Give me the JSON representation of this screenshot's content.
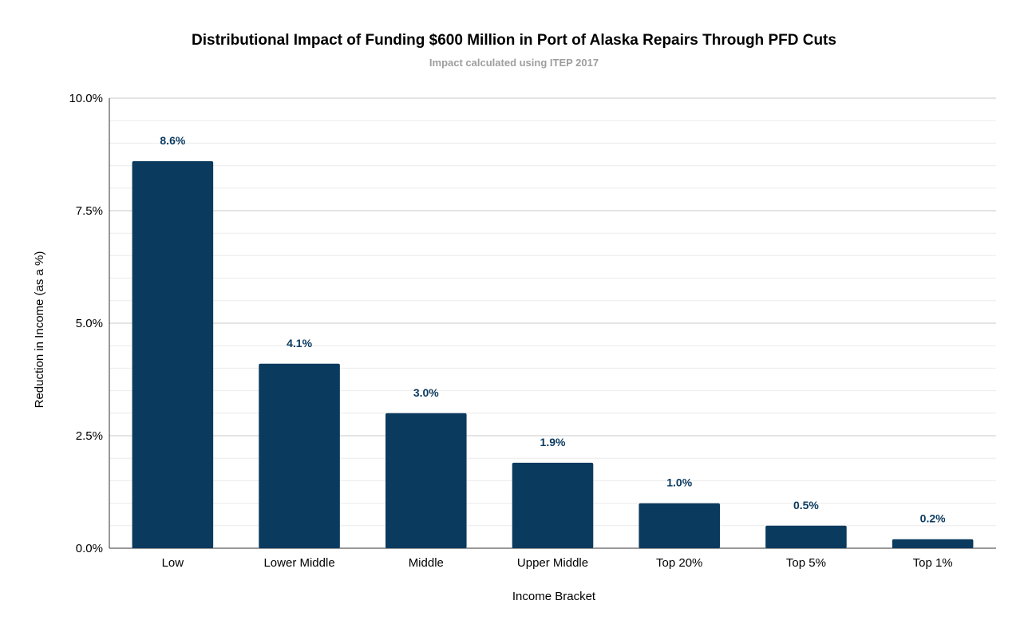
{
  "chart_data": {
    "type": "bar",
    "title": "Distributional Impact of Funding $600 Million in Port of Alaska Repairs Through PFD Cuts",
    "subtitle": "Impact calculated using ITEP 2017",
    "xlabel": "Income Bracket",
    "ylabel": "Reduction in Income (as a %)",
    "categories": [
      "Low",
      "Lower Middle",
      "Middle",
      "Upper Middle",
      "Top 20%",
      "Top 5%",
      "Top 1%"
    ],
    "values": [
      8.6,
      4.1,
      3.0,
      1.9,
      1.0,
      0.5,
      0.2
    ],
    "data_labels": [
      "8.6%",
      "4.1%",
      "3.0%",
      "1.9%",
      "1.0%",
      "0.5%",
      "0.2%"
    ],
    "ylim": [
      0,
      10
    ],
    "yticks": [
      0,
      2.5,
      5,
      7.5,
      10
    ],
    "ytick_labels": [
      "0.0%",
      "2.5%",
      "5.0%",
      "7.5%",
      "10.0%"
    ],
    "grid": true,
    "legend": "none",
    "bar_color": "#0b3a5f"
  }
}
